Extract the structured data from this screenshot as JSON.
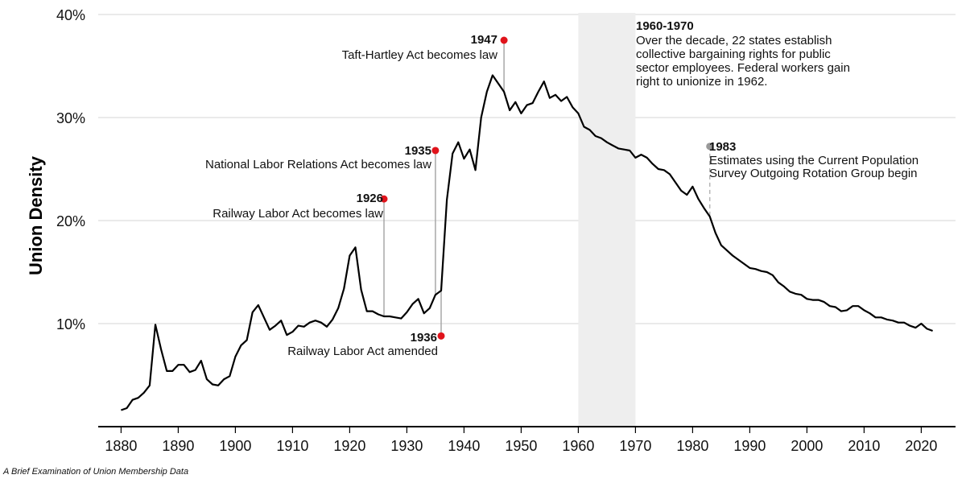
{
  "chart_data": {
    "type": "line",
    "title": "",
    "xlabel": "",
    "ylabel": "Union Density",
    "xlim": [
      1876,
      2026
    ],
    "ylim": [
      0,
      40
    ],
    "x_ticks": [
      1880,
      1890,
      1900,
      1910,
      1920,
      1930,
      1940,
      1950,
      1960,
      1970,
      1980,
      1990,
      2000,
      2010,
      2020
    ],
    "y_ticks": [
      10,
      20,
      30,
      40
    ],
    "y_tick_labels": [
      "10%",
      "20%",
      "30%",
      "40%"
    ],
    "grid": "horizontal",
    "series": [
      {
        "x": [
          1880,
          1881,
          1882,
          1883,
          1884,
          1885,
          1886,
          1887,
          1888,
          1889,
          1890,
          1891,
          1892,
          1893,
          1894,
          1895,
          1896,
          1897,
          1898,
          1899,
          1900,
          1901,
          1902,
          1903,
          1904,
          1905,
          1906,
          1907,
          1908,
          1909,
          1910,
          1911,
          1912,
          1913,
          1914,
          1915,
          1916,
          1917,
          1918,
          1919,
          1920,
          1921,
          1922,
          1923,
          1924,
          1925,
          1926,
          1927,
          1928,
          1929,
          1930,
          1931,
          1932,
          1933,
          1934,
          1935,
          1936,
          1937,
          1938,
          1939,
          1940,
          1941,
          1942,
          1943,
          1944,
          1945,
          1946,
          1947,
          1948,
          1949,
          1950,
          1951,
          1952,
          1953,
          1954,
          1955,
          1956,
          1957,
          1958,
          1959,
          1960,
          1961,
          1962,
          1963,
          1964,
          1965,
          1966,
          1967,
          1968,
          1969,
          1970,
          1971,
          1972,
          1973,
          1974,
          1975,
          1976,
          1977,
          1978,
          1979,
          1980,
          1981,
          1982,
          1983,
          1984,
          1985,
          1986,
          1987,
          1988,
          1989,
          1990,
          1991,
          1992,
          1993,
          1994,
          1995,
          1996,
          1997,
          1998,
          1999,
          2000,
          2001,
          2002,
          2003,
          2004,
          2005,
          2006,
          2007,
          2008,
          2009,
          2010,
          2011,
          2012,
          2013,
          2014,
          2015,
          2016,
          2017,
          2018,
          2019,
          2020,
          2021,
          2022
        ],
        "y": [
          1.6,
          1.8,
          2.6,
          2.8,
          3.3,
          4.0,
          9.9,
          7.5,
          5.4,
          5.4,
          6.0,
          6.0,
          5.3,
          5.5,
          6.4,
          4.6,
          4.1,
          4.0,
          4.6,
          4.9,
          6.8,
          7.9,
          8.4,
          11.1,
          11.8,
          10.6,
          9.4,
          9.8,
          10.3,
          8.9,
          9.2,
          9.8,
          9.7,
          10.1,
          10.3,
          10.1,
          9.7,
          10.4,
          11.5,
          13.4,
          16.6,
          17.4,
          13.3,
          11.2,
          11.2,
          10.9,
          10.7,
          10.7,
          10.6,
          10.5,
          11.1,
          11.9,
          12.4,
          11.0,
          11.5,
          12.8,
          13.2,
          22.0,
          26.5,
          27.6,
          26.0,
          26.9,
          24.9,
          30.0,
          32.5,
          34.1,
          33.3,
          32.5,
          30.7,
          31.5,
          30.4,
          31.2,
          31.4,
          32.5,
          33.5,
          31.9,
          32.2,
          31.6,
          32.0,
          31.0,
          30.4,
          29.1,
          28.8,
          28.2,
          28.0,
          27.6,
          27.3,
          27.0,
          26.9,
          26.8,
          26.1,
          26.4,
          26.1,
          25.5,
          25.0,
          24.9,
          24.5,
          23.7,
          22.9,
          22.5,
          23.3,
          22.1,
          21.2,
          20.4,
          18.8,
          17.6,
          17.1,
          16.6,
          16.2,
          15.8,
          15.4,
          15.3,
          15.1,
          15.0,
          14.7,
          14.0,
          13.6,
          13.1,
          12.9,
          12.8,
          12.4,
          12.3,
          12.3,
          12.1,
          11.7,
          11.6,
          11.2,
          11.3,
          11.7,
          11.7,
          11.3,
          11.0,
          10.6,
          10.6,
          10.4,
          10.3,
          10.1,
          10.1,
          9.8,
          9.6,
          10.0,
          9.5,
          9.3
        ]
      }
    ],
    "shaded_region": {
      "x": [
        1960,
        1970
      ],
      "color": "#eeeeee"
    },
    "annotations": [
      {
        "id": "a1926",
        "year_label": "1926",
        "text": "Railway Labor Act becomes law",
        "x": 1926,
        "dot_y": 22.1,
        "line_to": 10.7,
        "color": "#e0131b",
        "dashed": false
      },
      {
        "id": "a1935",
        "year_label": "1935",
        "text": "National Labor Relations Act becomes law",
        "x": 1935,
        "dot_y": 26.8,
        "line_to": 12.8,
        "color": "#e0131b",
        "dashed": false
      },
      {
        "id": "a1936",
        "year_label": "1936",
        "text": "Railway Labor Act amended",
        "x": 1936,
        "dot_y": 8.8,
        "line_to": 13.2,
        "color": "#e0131b",
        "dashed": false
      },
      {
        "id": "a1947",
        "year_label": "1947",
        "text": "Taft-Hartley Act becomes law",
        "x": 1947,
        "dot_y": 37.5,
        "line_to": 32.5,
        "color": "#e0131b",
        "dashed": false
      },
      {
        "id": "a1983",
        "year_label": "1983",
        "text_lines": [
          "Estimates using the Current Population",
          "Survey Outgoing Rotation Group begin"
        ],
        "x": 1983,
        "dot_y": 27.2,
        "line_to": 20.4,
        "color": "#999999",
        "dashed": true
      }
    ],
    "period_note": {
      "title": "1960-1970",
      "lines": [
        "Over the decade, 22 states establish",
        "collective bargaining rights for public",
        "sector employees. Federal workers gain",
        "right to unionize in 1962."
      ]
    },
    "line_color": "#000000"
  },
  "caption": "A Brief Examination of Union Membership Data"
}
